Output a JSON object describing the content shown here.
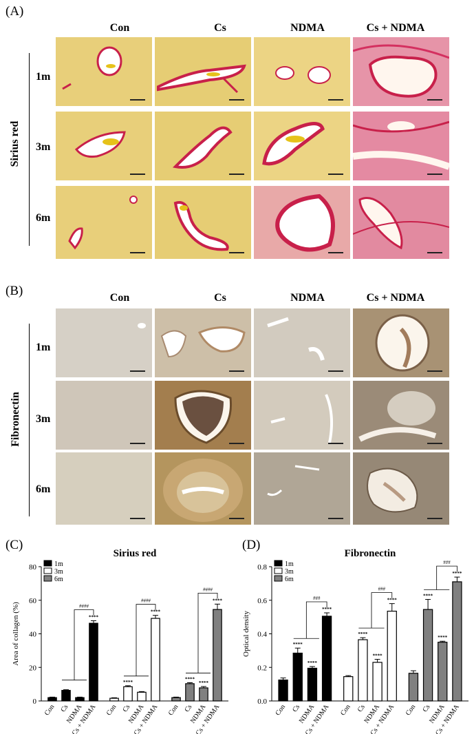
{
  "panelA": {
    "letter": "(A)",
    "columns": [
      "Con",
      "Cs",
      "NDMA",
      "Cs + NDMA"
    ],
    "rows": [
      "1m",
      "3m",
      "6m"
    ],
    "side_label": "Sirius red"
  },
  "panelB": {
    "letter": "(B)",
    "columns": [
      "Con",
      "Cs",
      "NDMA",
      "Cs + NDMA"
    ],
    "rows": [
      "1m",
      "3m",
      "6m"
    ],
    "side_label": "Fibronectin"
  },
  "chart_data": [
    {
      "type": "bar",
      "letter": "(C)",
      "title": "Sirius red",
      "ylabel": "Area of collagen (%)",
      "ylim": [
        0,
        80
      ],
      "yticks": [
        0,
        20,
        40,
        60,
        80
      ],
      "categories": [
        "Con",
        "Cs",
        "NDMA",
        "Cs + NDMA"
      ],
      "legend": [
        "1m",
        "3m",
        "6m"
      ],
      "series": [
        {
          "name": "1m",
          "color": "#000000",
          "values": [
            2,
            6.3,
            2,
            46.3
          ],
          "errors": [
            0.3,
            0.4,
            0.3,
            1.5
          ],
          "stars": [
            "",
            "",
            "",
            "****"
          ]
        },
        {
          "name": "3m",
          "color": "#ffffff",
          "values": [
            1.6,
            8.5,
            5.2,
            49.2
          ],
          "errors": [
            0.3,
            0.6,
            0.4,
            1.8
          ],
          "stars": [
            "",
            "****",
            "",
            "****"
          ]
        },
        {
          "name": "6m",
          "color": "#808080",
          "values": [
            2,
            10.3,
            7.8,
            54.5
          ],
          "errors": [
            0.3,
            0.6,
            0.8,
            3.2
          ],
          "stars": [
            "",
            "****",
            "****",
            "****"
          ]
        }
      ],
      "hash_label": "####"
    },
    {
      "type": "bar",
      "letter": "(D)",
      "title": "Fibronectin",
      "ylabel": "Optical density",
      "ylim": [
        0,
        0.8
      ],
      "yticks": [
        "0.0",
        "0.2",
        "0.4",
        "0.6",
        "0.8"
      ],
      "categories": [
        "Con",
        "Cs",
        "NDMA",
        "Cs + NDMA"
      ],
      "legend": [
        "1m",
        "3m",
        "6m"
      ],
      "series": [
        {
          "name": "1m",
          "color": "#000000",
          "values": [
            0.125,
            0.285,
            0.195,
            0.505
          ],
          "errors": [
            0.012,
            0.03,
            0.01,
            0.02
          ],
          "stars": [
            "",
            "****",
            "****",
            "****"
          ]
        },
        {
          "name": "3m",
          "color": "#ffffff",
          "values": [
            0.145,
            0.365,
            0.23,
            0.535
          ],
          "errors": [
            0.006,
            0.012,
            0.018,
            0.045
          ],
          "stars": [
            "",
            "****",
            "****",
            "****"
          ]
        },
        {
          "name": "6m",
          "color": "#808080",
          "values": [
            0.165,
            0.545,
            0.35,
            0.71
          ],
          "errors": [
            0.015,
            0.06,
            0.006,
            0.028
          ],
          "stars": [
            "",
            "****",
            "****",
            "****"
          ]
        }
      ],
      "hash_label": "###"
    }
  ]
}
